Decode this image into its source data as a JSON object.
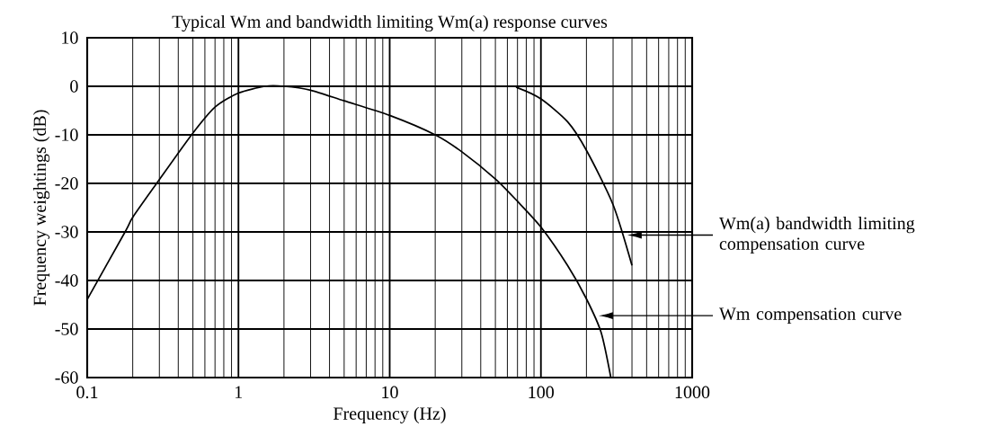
{
  "chart_data": {
    "type": "line",
    "title": "Typical Wm and bandwidth limiting Wm(a) response curves",
    "xlabel": "Frequency (Hz)",
    "ylabel": "Frequency weightings (dB)",
    "log": "x",
    "grid": true,
    "marker": "none",
    "line_style": "solid",
    "xlim": [
      0.1,
      1000
    ],
    "ylim": [
      -60,
      10
    ],
    "xticks": [
      0.1,
      1,
      10,
      100,
      1000
    ],
    "yticks": [
      -60,
      -50,
      -40,
      -30,
      -20,
      -10,
      0,
      10
    ],
    "series": [
      {
        "name": "Wm compensation curve",
        "color": "#000000",
        "x": [
          0.1,
          0.178,
          0.2,
          0.288,
          0.49,
          0.7,
          1,
          1.5,
          2,
          3,
          5,
          10,
          20,
          30,
          50,
          70,
          100,
          150,
          200,
          250,
          290
        ],
        "values": [
          -43.9,
          -30,
          -27,
          -20,
          -10,
          -4.3,
          -1.4,
          0,
          0,
          -0.8,
          -3,
          -6,
          -10,
          -13.5,
          -19.1,
          -23.7,
          -29,
          -36.9,
          -43.8,
          -50.7,
          -60
        ]
      },
      {
        "name": "Wm(a) bandwidth limiting compensation curve",
        "color": "#000000",
        "x": [
          1.5,
          2,
          10,
          60,
          70,
          100,
          150,
          200,
          300,
          400
        ],
        "values": [
          0,
          0,
          0,
          0,
          -0.3,
          -2.6,
          -7.3,
          -13.2,
          -24.4,
          -36.9
        ]
      }
    ]
  }
}
